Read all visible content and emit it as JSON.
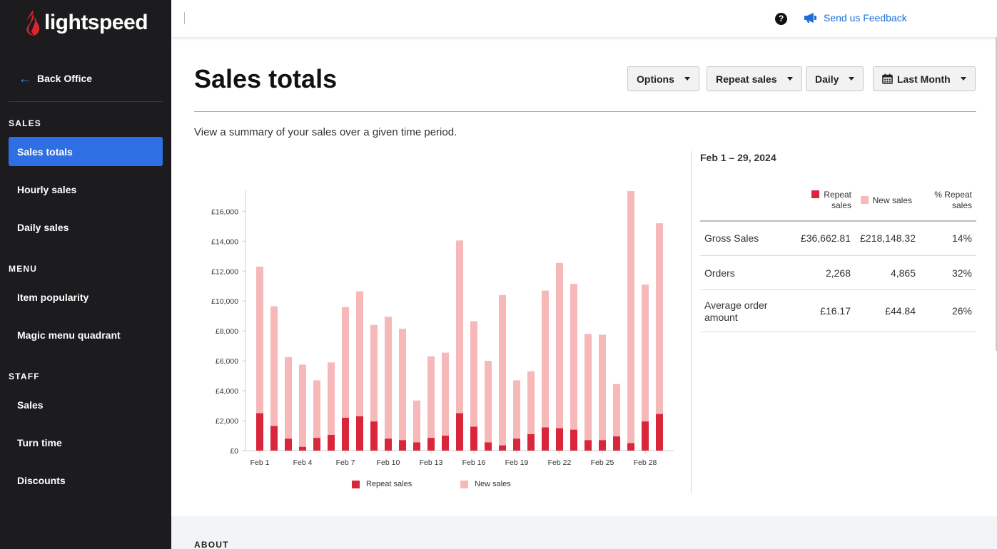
{
  "brand": {
    "name": "lightspeed",
    "accent": "#e0242f"
  },
  "sidebar": {
    "back_label": "Back Office",
    "sections": [
      {
        "title": "SALES",
        "items": [
          {
            "label": "Sales totals",
            "active": true
          },
          {
            "label": "Hourly sales"
          },
          {
            "label": "Daily sales"
          }
        ]
      },
      {
        "title": "MENU",
        "items": [
          {
            "label": "Item popularity"
          },
          {
            "label": "Magic menu quadrant"
          }
        ]
      },
      {
        "title": "STAFF",
        "items": [
          {
            "label": "Sales"
          },
          {
            "label": "Turn time"
          },
          {
            "label": "Discounts"
          }
        ]
      }
    ]
  },
  "topbar": {
    "help_icon": "?",
    "feedback_label": "Send us Feedback"
  },
  "page": {
    "title": "Sales totals",
    "subtitle": "View a summary of your sales over a given time period.",
    "buttons": {
      "options": "Options",
      "mode": "Repeat sales",
      "interval": "Daily",
      "period": "Last Month"
    },
    "about_label": "ABOUT"
  },
  "summary": {
    "range": "Feb 1 – 29, 2024",
    "headers": {
      "repeat_line1": "Repeat",
      "repeat_line2": "sales",
      "new": "New sales",
      "pct_line1": "% Repeat",
      "pct_line2": "sales"
    },
    "rows": [
      {
        "label": "Gross Sales",
        "repeat": "£36,662.81",
        "new": "£218,148.32",
        "pct": "14%"
      },
      {
        "label": "Orders",
        "repeat": "2,268",
        "new": "4,865",
        "pct": "32%"
      },
      {
        "label_line1": "Average order",
        "label_line2": "amount",
        "repeat": "£16.17",
        "new": "£44.84",
        "pct": "26%"
      }
    ]
  },
  "chart_data": {
    "type": "bar",
    "stacked": true,
    "categories": [
      "Feb 1",
      "Feb 2",
      "Feb 3",
      "Feb 4",
      "Feb 5",
      "Feb 6",
      "Feb 7",
      "Feb 8",
      "Feb 9",
      "Feb 10",
      "Feb 11",
      "Feb 12",
      "Feb 13",
      "Feb 14",
      "Feb 15",
      "Feb 16",
      "Feb 17",
      "Feb 18",
      "Feb 19",
      "Feb 20",
      "Feb 21",
      "Feb 22",
      "Feb 23",
      "Feb 24",
      "Feb 25",
      "Feb 26",
      "Feb 27",
      "Feb 28",
      "Feb 29"
    ],
    "x_tick_labels": [
      "Feb 1",
      "Feb 4",
      "Feb 7",
      "Feb 10",
      "Feb 13",
      "Feb 16",
      "Feb 19",
      "Feb 22",
      "Feb 25",
      "Feb 28"
    ],
    "y_tick_labels": [
      "£0",
      "£2,000",
      "£4,000",
      "£6,000",
      "£8,000",
      "£10,000",
      "£12,000",
      "£14,000",
      "£16,000"
    ],
    "ylim": [
      0,
      17400
    ],
    "series": [
      {
        "name": "Repeat sales",
        "color": "#d9263a",
        "values": [
          2500,
          1650,
          800,
          250,
          850,
          1050,
          2200,
          2300,
          1950,
          800,
          700,
          550,
          850,
          1000,
          2500,
          1600,
          550,
          350,
          800,
          1100,
          1550,
          1500,
          1400,
          700,
          700,
          950,
          500,
          1950,
          2450
        ]
      },
      {
        "name": "New sales",
        "color": "#f7b8ba",
        "values": [
          9800,
          8000,
          5450,
          5500,
          3850,
          4850,
          7400,
          8350,
          6450,
          8150,
          7450,
          2800,
          5450,
          5550,
          11550,
          7050,
          5450,
          10050,
          3900,
          4200,
          9150,
          11050,
          9750,
          7100,
          7050,
          3500,
          16850,
          9150,
          12750
        ]
      }
    ],
    "legend": "bottom",
    "grid": false
  }
}
